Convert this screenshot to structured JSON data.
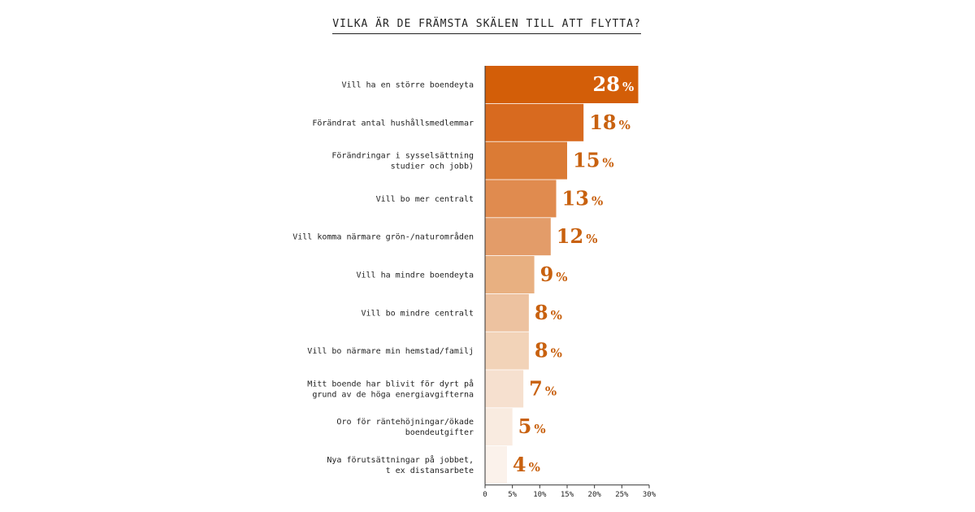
{
  "chart_data": {
    "type": "bar",
    "orientation": "horizontal",
    "title": "VILKA ÄR DE FRÄMSTA SKÄLEN TILL ATT FLYTTA?",
    "categories": [
      [
        "Vill ha en större boendeyta"
      ],
      [
        "Förändrat antal hushållsmedlemmar"
      ],
      [
        "Förändringar i sysselsättning",
        "studier och jobb)"
      ],
      [
        "Vill bo mer centralt"
      ],
      [
        "Vill komma närmare grön-/naturområden"
      ],
      [
        "Vill ha mindre boendeyta"
      ],
      [
        "Vill bo mindre centralt"
      ],
      [
        "Vill bo närmare min hemstad/familj"
      ],
      [
        "Mitt boende har blivit för dyrt på",
        "grund av de höga energiavgifterna"
      ],
      [
        "Oro för räntehöjningar/ökade",
        "boendeutgifter"
      ],
      [
        "Nya förutsättningar på jobbet,",
        "t ex distansarbete"
      ]
    ],
    "values": [
      28,
      18,
      15,
      13,
      12,
      9,
      8,
      8,
      7,
      5,
      4
    ],
    "value_suffix": "%",
    "xlim": [
      0,
      30
    ],
    "x_ticks": [
      "0",
      "5%",
      "10%",
      "15%",
      "20%",
      "25%",
      "30%"
    ],
    "bar_colors": [
      "#d35e08",
      "#d86a1f",
      "#db7b35",
      "#e08b4f",
      "#e39c69",
      "#e8b081",
      "#edc2a0",
      "#f2d3b8",
      "#f6e0cf",
      "#f9ebe0",
      "#fbf2eb"
    ],
    "value_label_color": "#c8610f",
    "value_label_inside_color": "#ffffff",
    "grid": false,
    "legend": "none"
  }
}
